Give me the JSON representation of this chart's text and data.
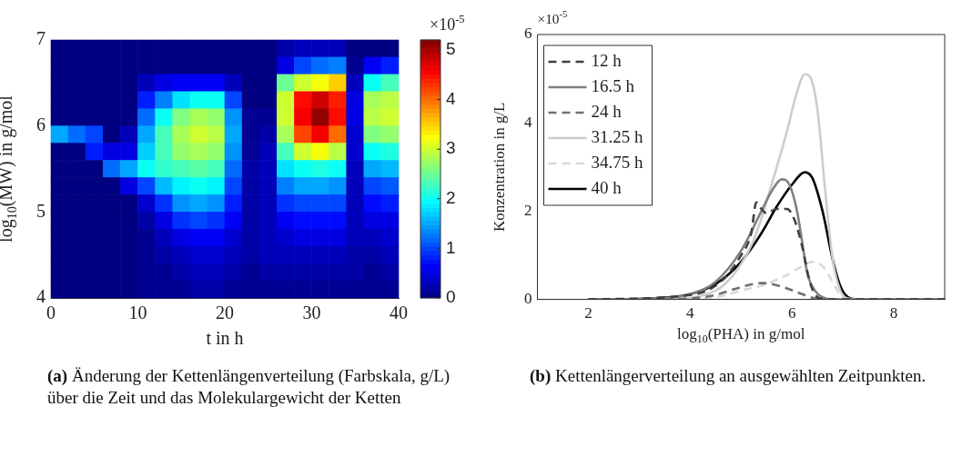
{
  "chart_data": [
    {
      "type": "heatmap",
      "xlabel": "t in h",
      "ylabel": "log$_{10}$(MW) in g/mol",
      "clabel": "×10$^{-5}$",
      "x": [
        1,
        3,
        5,
        7,
        9,
        11,
        13,
        15,
        17,
        19,
        21,
        23,
        25,
        27,
        29,
        31,
        33,
        35,
        37,
        39
      ],
      "y": [
        6.9,
        6.7,
        6.5,
        6.3,
        6.1,
        5.9,
        5.7,
        5.5,
        5.3,
        5.1,
        4.9,
        4.7,
        4.5,
        4.3,
        4.1
      ],
      "xlim": [
        0,
        40
      ],
      "xticks": [
        0,
        10,
        20,
        30,
        40
      ],
      "ylim": [
        4,
        7
      ],
      "yticks": [
        4,
        5,
        6,
        7
      ],
      "clim": [
        0,
        5.2
      ],
      "cticks": [
        0,
        1,
        2,
        3,
        4,
        5
      ],
      "cells": [
        [
          0,
          0,
          0,
          0,
          0,
          0,
          0,
          0,
          0,
          0,
          0,
          0,
          0,
          0.2,
          0.3,
          0.3,
          0.3,
          0,
          0,
          0
        ],
        [
          0,
          0,
          0,
          0,
          0,
          0,
          0,
          0,
          0,
          0,
          0,
          0,
          0,
          0.5,
          1.0,
          1.2,
          1.3,
          0.1,
          0.6,
          0.8
        ],
        [
          0,
          0,
          0,
          0,
          0,
          0.3,
          0.5,
          0.6,
          0.6,
          0.6,
          0.3,
          0,
          0,
          2.5,
          3.0,
          3.2,
          3.5,
          0.3,
          2.0,
          2.3
        ],
        [
          0,
          0,
          0,
          0,
          0,
          0.8,
          1.3,
          1.8,
          2.0,
          2.0,
          1.0,
          0,
          0,
          3.0,
          4.5,
          4.8,
          4.4,
          0.5,
          2.8,
          2.9
        ],
        [
          0,
          0,
          0,
          0,
          0,
          1.2,
          2.0,
          2.6,
          2.8,
          2.7,
          1.4,
          0.1,
          0.1,
          3.0,
          4.6,
          5.1,
          4.5,
          0.5,
          2.9,
          3.0
        ],
        [
          1.5,
          1.2,
          1.0,
          0,
          0.3,
          1.5,
          2.3,
          2.8,
          3.0,
          2.9,
          1.5,
          0.1,
          0.2,
          2.8,
          4.2,
          4.6,
          4.0,
          0.4,
          2.6,
          2.7
        ],
        [
          0,
          0,
          0.8,
          0.5,
          0.5,
          1.7,
          2.3,
          2.7,
          2.8,
          2.7,
          1.4,
          0.1,
          0.3,
          2.3,
          3.0,
          3.2,
          2.9,
          0.4,
          2.0,
          2.1
        ],
        [
          0,
          0,
          0,
          1.2,
          1.5,
          2.0,
          2.2,
          2.3,
          2.4,
          2.3,
          1.2,
          0.2,
          0.3,
          1.8,
          2.0,
          2.1,
          2.0,
          0.3,
          1.5,
          1.6
        ],
        [
          0,
          0,
          0,
          0,
          0.5,
          1.0,
          1.6,
          1.9,
          2.0,
          1.9,
          1.0,
          0.2,
          0.3,
          1.3,
          1.5,
          1.5,
          1.4,
          0.3,
          1.0,
          1.1
        ],
        [
          0,
          0,
          0,
          0,
          0,
          0.4,
          0.9,
          1.4,
          1.5,
          1.4,
          0.8,
          0.2,
          0.3,
          0.9,
          1.0,
          1.0,
          1.0,
          0.3,
          0.7,
          0.8
        ],
        [
          0,
          0,
          0,
          0,
          0,
          0.2,
          0.5,
          0.9,
          1.0,
          0.9,
          0.6,
          0.2,
          0.3,
          0.6,
          0.7,
          0.7,
          0.7,
          0.3,
          0.5,
          0.5
        ],
        [
          0,
          0,
          0,
          0,
          0,
          0.1,
          0.3,
          0.5,
          0.6,
          0.6,
          0.4,
          0.2,
          0.3,
          0.4,
          0.5,
          0.5,
          0.5,
          0.3,
          0.3,
          0.4
        ],
        [
          0,
          0,
          0,
          0,
          0,
          0.1,
          0.2,
          0.3,
          0.4,
          0.4,
          0.3,
          0.2,
          0.3,
          0.3,
          0.3,
          0.3,
          0.3,
          0.2,
          0.2,
          0.3
        ],
        [
          0,
          0,
          0,
          0,
          0,
          0.1,
          0.1,
          0.2,
          0.3,
          0.3,
          0.2,
          0.1,
          0.2,
          0.2,
          0.2,
          0.2,
          0.2,
          0.2,
          0.1,
          0.2
        ],
        [
          0,
          0,
          0,
          0,
          0,
          0.1,
          0.1,
          0.1,
          0.2,
          0.2,
          0.1,
          0.1,
          0.1,
          0.1,
          0.1,
          0.1,
          0.1,
          0.1,
          0.1,
          0.1
        ]
      ],
      "annotations": [
        "(a) Änderung der Kettenlängenverteilung (Farbskala, g/L) über die Zeit und das Molekulargewicht der Ketten"
      ]
    },
    {
      "type": "line",
      "xlabel": "log$_{10}$(PHA) in g/mol",
      "ylabel": "Konzentration in g/L",
      "xlim": [
        1,
        9
      ],
      "xticks": [
        2,
        4,
        6,
        8
      ],
      "ylim": [
        0,
        6
      ],
      "yticks": [
        0,
        2,
        4,
        6
      ],
      "legend": "top left",
      "series": [
        {
          "name": "12 h",
          "color": "#404040",
          "line_style": "dashed",
          "x": [
            2,
            4,
            4.6,
            5.0,
            5.2,
            5.3,
            5.4,
            5.5,
            5.7,
            5.9,
            6.05,
            6.2,
            6.35,
            6.5,
            6.7,
            9
          ],
          "values": [
            0,
            0.1,
            0.4,
            1.0,
            1.5,
            2.2,
            2.05,
            1.95,
            2.05,
            2.05,
            1.8,
            1.2,
            0.4,
            0.05,
            0,
            0
          ]
        },
        {
          "name": "16.5 h",
          "color": "#808080",
          "line_style": "solid",
          "x": [
            2,
            3,
            3.5,
            4,
            4.5,
            5,
            5.4,
            5.6,
            5.8,
            5.95,
            6.1,
            6.2,
            6.3,
            6.45,
            6.6,
            6.8,
            9
          ],
          "values": [
            0,
            0.01,
            0.03,
            0.12,
            0.4,
            1.1,
            2.0,
            2.45,
            2.72,
            2.6,
            2.0,
            1.3,
            0.6,
            0.2,
            0.05,
            0,
            0
          ]
        },
        {
          "name": "24 h",
          "color": "#707070",
          "line_style": "dashed",
          "x": [
            3.5,
            4,
            4.5,
            5,
            5.4,
            5.6,
            5.9,
            6.2,
            6.45,
            6.6
          ],
          "values": [
            0,
            0.02,
            0.1,
            0.28,
            0.37,
            0.35,
            0.25,
            0.12,
            0.02,
            0
          ]
        },
        {
          "name": "31.25 h",
          "color": "#d0ccc8",
          "line_style": "solid",
          "x": [
            2,
            3.5,
            4.5,
            5,
            5.3,
            5.6,
            5.9,
            6.1,
            6.25,
            6.35,
            6.5,
            6.65,
            6.8,
            6.95,
            7.1,
            7.3,
            9
          ],
          "values": [
            0,
            0.01,
            0.2,
            0.8,
            1.5,
            2.6,
            3.8,
            4.7,
            5.1,
            5.05,
            4.3,
            2.5,
            0.9,
            0.2,
            0.02,
            0,
            0
          ]
        },
        {
          "name": "34.75 h",
          "color": "#dcd8d0",
          "line_style": "dashed",
          "x": [
            4,
            4.5,
            5,
            5.5,
            5.9,
            6.2,
            6.4,
            6.6,
            6.8,
            6.95,
            7.1
          ],
          "values": [
            0,
            0.05,
            0.2,
            0.35,
            0.55,
            0.75,
            0.85,
            0.75,
            0.4,
            0.1,
            0
          ]
        },
        {
          "name": "40 h",
          "color": "#000000",
          "line_style": "solid",
          "x": [
            2,
            3,
            3.5,
            4,
            4.5,
            5,
            5.4,
            5.7,
            6.0,
            6.25,
            6.4,
            6.6,
            6.8,
            6.95,
            7.1,
            7.3,
            9
          ],
          "values": [
            0,
            0.01,
            0.04,
            0.12,
            0.35,
            0.85,
            1.5,
            2.1,
            2.6,
            2.88,
            2.75,
            2.0,
            0.9,
            0.3,
            0.05,
            0,
            0
          ]
        }
      ],
      "annotations": [
        "×10$^{-5}$",
        "(b) Kettenlängerverteilung an ausgewählten Zeitpunkten."
      ]
    }
  ]
}
